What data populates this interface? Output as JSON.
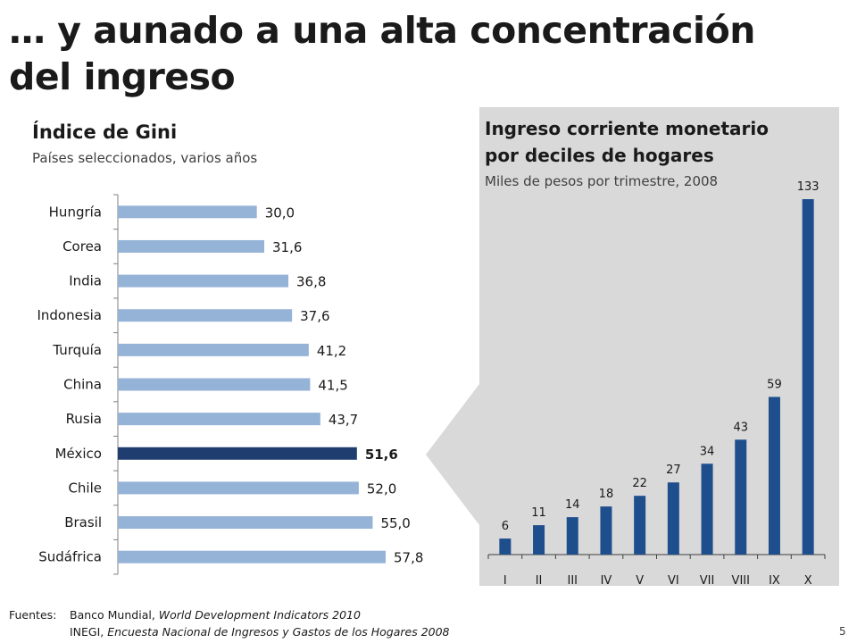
{
  "slide": {
    "title_line1": "… y aunado a una alta concentración",
    "title_line2": "del ingreso",
    "page_number": "5"
  },
  "footer": {
    "label": "Fuentes:",
    "source1_org": "Banco Mundial, ",
    "source1_title": "World Development Indicators 2010",
    "source2_org": "INEGI, ",
    "source2_title": "Encuesta Nacional de Ingresos y Gastos de los Hogares 2008"
  },
  "colors": {
    "light_bar": "#95b3d7",
    "highlight_bar": "#1f3d6e",
    "decile_bar": "#1f4e8c",
    "panel_bg": "#d9d9d9"
  },
  "chart_data": [
    {
      "type": "bar",
      "orientation": "horizontal",
      "title": "Índice de Gini",
      "subtitle": "Países seleccionados, varios años",
      "categories": [
        "Hungría",
        "Corea",
        "India",
        "Indonesia",
        "Turquía",
        "China",
        "Rusia",
        "México",
        "Chile",
        "Brasil",
        "Sudáfrica"
      ],
      "values": [
        30.0,
        31.6,
        36.8,
        37.6,
        41.2,
        41.5,
        43.7,
        51.6,
        52.0,
        55.0,
        57.8
      ],
      "value_labels": [
        "30,0",
        "31,6",
        "36,8",
        "37,6",
        "41,2",
        "41,5",
        "43,7",
        "51,6",
        "52,0",
        "55,0",
        "57,8"
      ],
      "highlight": "México",
      "xlim": [
        0,
        60
      ]
    },
    {
      "type": "bar",
      "orientation": "vertical",
      "title": "Ingreso corriente monetario por deciles de hogares",
      "title_line1": "Ingreso corriente monetario",
      "title_line2": "por deciles de hogares",
      "subtitle": "Miles de pesos por trimestre, 2008",
      "categories": [
        "I",
        "II",
        "III",
        "IV",
        "V",
        "VI",
        "VII",
        "VIII",
        "IX",
        "X"
      ],
      "values": [
        6,
        11,
        14,
        18,
        22,
        27,
        34,
        43,
        59,
        133
      ],
      "value_labels": [
        "6",
        "11",
        "14",
        "18",
        "22",
        "27",
        "34",
        "43",
        "59",
        "133"
      ],
      "ylim": [
        0,
        133
      ]
    }
  ]
}
